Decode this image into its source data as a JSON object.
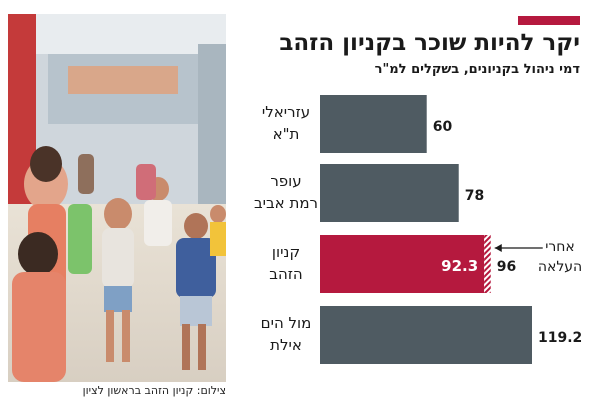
{
  "header": {
    "title": "יקר להיות שוכר בקניון הזהב",
    "subtitle": "דמי ניהול בקניונים, בשקלים למ\"ר"
  },
  "photo_credit": "צילום: קניון הזהב בראשון לציון",
  "colors": {
    "bar": "#4f5b62",
    "highlight": "#b5193e",
    "accent": "#b5193e"
  },
  "chart_data": {
    "type": "bar",
    "orientation": "horizontal",
    "title": "יקר להיות שוכר בקניון הזהב",
    "subtitle": "דמי ניהול בקניונים, בשקלים למ\"ר",
    "categories": [
      [
        "עזריאלי",
        "ת\"א"
      ],
      [
        "עופר",
        "רמת אביב"
      ],
      [
        "קניון",
        "הזהב"
      ],
      [
        "מול הים",
        "אילת"
      ]
    ],
    "values": [
      60,
      78,
      92.3,
      119.2
    ],
    "value_labels": [
      "60",
      "78",
      "92.3",
      "119.2"
    ],
    "highlight_index": 2,
    "after_increase": {
      "value": 96,
      "label": "96",
      "annotation": [
        "אחרי",
        "העלאה"
      ]
    },
    "xlim": [
      0,
      119.2
    ]
  }
}
